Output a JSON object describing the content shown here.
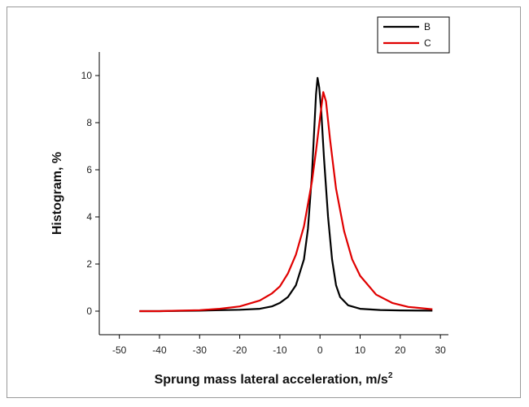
{
  "chart_data": {
    "type": "line",
    "title": "",
    "xlabel": "Sprung mass lateral acceleration, m/s",
    "xlabel_superscript": "2",
    "ylabel": "Histogram, %",
    "xlim": [
      -55,
      32
    ],
    "ylim": [
      -1,
      11
    ],
    "x_ticks": [
      -50,
      -40,
      -30,
      -20,
      -10,
      0,
      10,
      20,
      30
    ],
    "y_ticks": [
      0,
      2,
      4,
      6,
      8,
      10
    ],
    "grid": false,
    "legend_position": "top-right",
    "series": [
      {
        "name": "B",
        "color": "#000000",
        "points": [
          [
            -45,
            0.0
          ],
          [
            -40,
            0.0
          ],
          [
            -30,
            0.02
          ],
          [
            -25,
            0.04
          ],
          [
            -20,
            0.06
          ],
          [
            -15,
            0.1
          ],
          [
            -12,
            0.2
          ],
          [
            -10,
            0.35
          ],
          [
            -8,
            0.6
          ],
          [
            -6,
            1.1
          ],
          [
            -4,
            2.2
          ],
          [
            -3,
            3.5
          ],
          [
            -2,
            5.8
          ],
          [
            -1.5,
            7.5
          ],
          [
            -1,
            9.2
          ],
          [
            -0.6,
            9.9
          ],
          [
            -0.2,
            9.5
          ],
          [
            0.3,
            8.5
          ],
          [
            1,
            6.5
          ],
          [
            2,
            4.0
          ],
          [
            3,
            2.2
          ],
          [
            4,
            1.1
          ],
          [
            5,
            0.6
          ],
          [
            7,
            0.25
          ],
          [
            10,
            0.1
          ],
          [
            15,
            0.05
          ],
          [
            20,
            0.03
          ],
          [
            28,
            0.02
          ]
        ]
      },
      {
        "name": "C",
        "color": "#e00000",
        "points": [
          [
            -45,
            0.0
          ],
          [
            -40,
            0.0
          ],
          [
            -35,
            0.02
          ],
          [
            -30,
            0.04
          ],
          [
            -25,
            0.1
          ],
          [
            -20,
            0.2
          ],
          [
            -15,
            0.45
          ],
          [
            -12,
            0.75
          ],
          [
            -10,
            1.05
          ],
          [
            -8,
            1.6
          ],
          [
            -6,
            2.4
          ],
          [
            -4,
            3.6
          ],
          [
            -2,
            5.5
          ],
          [
            -1,
            6.8
          ],
          [
            0,
            8.2
          ],
          [
            0.8,
            9.3
          ],
          [
            1.5,
            8.9
          ],
          [
            2.5,
            7.3
          ],
          [
            4,
            5.2
          ],
          [
            6,
            3.4
          ],
          [
            8,
            2.2
          ],
          [
            10,
            1.5
          ],
          [
            14,
            0.7
          ],
          [
            18,
            0.35
          ],
          [
            22,
            0.18
          ],
          [
            28,
            0.08
          ]
        ]
      }
    ]
  }
}
